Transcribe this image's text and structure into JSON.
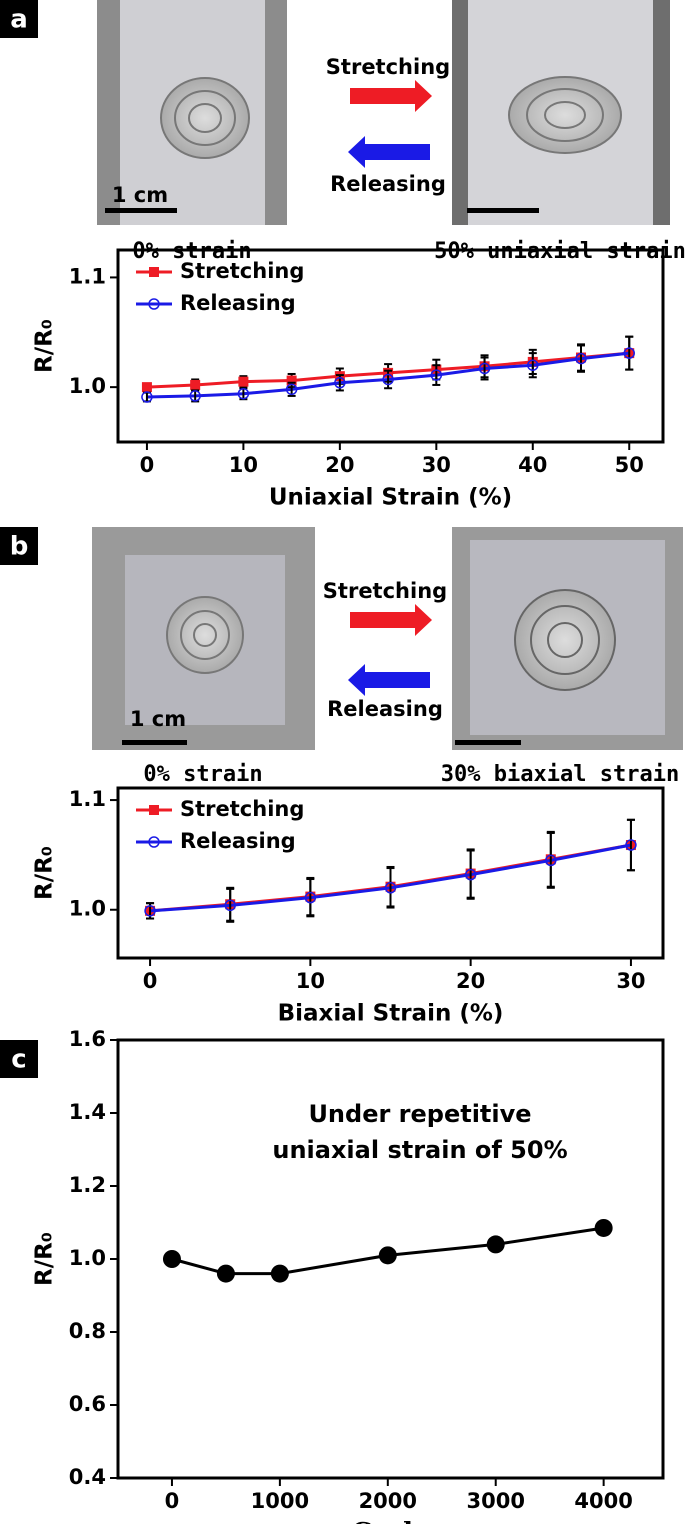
{
  "panel_labels": [
    "a",
    "b",
    "c"
  ],
  "photo_panels": [
    {
      "left_caption": "0% strain",
      "right_caption": "50% uniaxial strain",
      "arrow_top": "Stretching",
      "arrow_bottom": "Releasing",
      "scale_bar": "1 cm"
    },
    {
      "left_caption": "0% strain",
      "right_caption": "30% biaxial strain",
      "arrow_top": "Stretching",
      "arrow_bottom": "Releasing",
      "scale_bar": "1 cm"
    }
  ],
  "chart_data": [
    {
      "type": "line",
      "x_label": "Uniaxial Strain (%)",
      "y_label": "R/R₀",
      "x": [
        0,
        5,
        10,
        15,
        20,
        25,
        30,
        35,
        40,
        45,
        50
      ],
      "xlim": [
        -3,
        53.5
      ],
      "xticks": [
        0,
        10,
        20,
        30,
        40,
        50
      ],
      "ylim": [
        0.95,
        1.125
      ],
      "yticks": [
        {
          "value": 1.0,
          "label": "1.0"
        },
        1.1
      ],
      "series": [
        {
          "name": "Stretching",
          "color": "#ee1c25",
          "marker": "square",
          "values": [
            1.0,
            1.002,
            1.005,
            1.006,
            1.01,
            1.013,
            1.016,
            1.019,
            1.023,
            1.027,
            1.031
          ],
          "errors": [
            0.003,
            0.005,
            0.005,
            0.006,
            0.007,
            0.008,
            0.009,
            0.01,
            0.011,
            0.012,
            0.015
          ]
        },
        {
          "name": "Releasing",
          "color": "#1a1ae6",
          "marker": "open-circle",
          "values": [
            0.991,
            0.992,
            0.994,
            0.998,
            1.004,
            1.007,
            1.011,
            1.017,
            1.02,
            1.026,
            1.031
          ],
          "errors": [
            0.004,
            0.005,
            0.005,
            0.006,
            0.007,
            0.008,
            0.009,
            0.01,
            0.011,
            0.012,
            0.015
          ]
        }
      ]
    },
    {
      "type": "line",
      "x_label": "Biaxial Strain (%)",
      "y_label": "R/R₀",
      "x": [
        0,
        5,
        10,
        15,
        20,
        25,
        30
      ],
      "xlim": [
        -2,
        32
      ],
      "xticks": [
        0,
        10,
        20,
        30
      ],
      "ylim": [
        0.956,
        1.111
      ],
      "yticks": [
        {
          "value": 1.0,
          "label": "1.0"
        },
        1.1
      ],
      "series": [
        {
          "name": "Stretching",
          "color": "#ee1c25",
          "marker": "square",
          "values": [
            0.999,
            1.005,
            1.012,
            1.021,
            1.033,
            1.046,
            1.059
          ],
          "errors": [
            0.007,
            0.015,
            0.017,
            0.018,
            0.022,
            0.025,
            0.023
          ]
        },
        {
          "name": "Releasing",
          "color": "#1a1ae6",
          "marker": "open-circle",
          "values": [
            0.999,
            1.004,
            1.011,
            1.02,
            1.032,
            1.045,
            1.059
          ],
          "errors": [
            0.007,
            0.015,
            0.017,
            0.018,
            0.022,
            0.025,
            0.023
          ]
        }
      ]
    },
    {
      "type": "line",
      "x_label": "Cycle",
      "y_label": "R/R₀",
      "annotation": [
        "Under repetitive",
        "uniaxial strain of 50%"
      ],
      "x": [
        0,
        500,
        1000,
        2000,
        3000,
        4000
      ],
      "values": [
        1.0,
        0.96,
        0.96,
        1.01,
        1.04,
        1.085
      ],
      "color": "#000000",
      "marker": "circle",
      "xlim": [
        -500,
        4550
      ],
      "xticks": [
        0,
        1000,
        2000,
        3000,
        4000
      ],
      "ylim": [
        0.4,
        1.6
      ],
      "yticks": [
        {
          "value": 0.4,
          "label": "0.4"
        },
        {
          "value": 0.6,
          "label": "0.6"
        },
        {
          "value": 0.8,
          "label": "0.8"
        },
        {
          "value": 1.0,
          "label": "1.0"
        },
        {
          "value": 1.2,
          "label": "1.2"
        },
        {
          "value": 1.4,
          "label": "1.4"
        },
        {
          "value": 1.6,
          "label": "1.6"
        }
      ]
    }
  ]
}
